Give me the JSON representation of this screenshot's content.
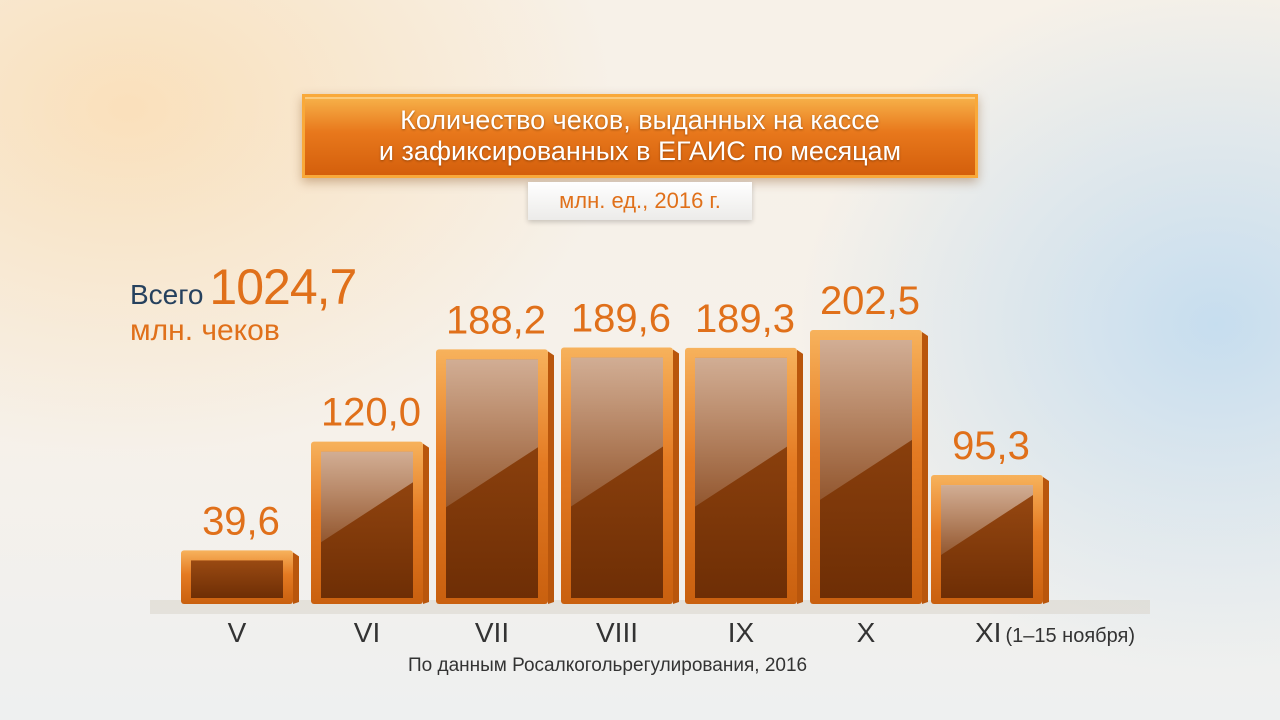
{
  "colors": {
    "accent": "#e0701a",
    "bar_dark": "#8a3d08",
    "bar_light": "#f5a040",
    "total_text": "#26415e"
  },
  "total": {
    "prefix": "Всего",
    "value": "1024,7",
    "unit": "млн. чеков"
  },
  "source": "По данным Росалкогольрегулирования, 2016",
  "chart_data": {
    "type": "bar",
    "title": "Количество чеков, выданных на кассе и зафиксированных в ЕГАИС по месяцам",
    "title_lines": [
      "Количество чеков, выданных на кассе",
      "и зафиксированных в ЕГАИС по месяцам"
    ],
    "subtitle": "млн. ед., 2016 г.",
    "categories": [
      "V",
      "VI",
      "VII",
      "VIII",
      "IX",
      "X",
      "XI"
    ],
    "category_notes": [
      "",
      "",
      "",
      "",
      "",
      "",
      "(1–15 ноября)"
    ],
    "values": [
      39.6,
      120.0,
      188.2,
      189.6,
      189.3,
      202.5,
      95.3
    ],
    "value_labels": [
      "39,6",
      "120,0",
      "188,2",
      "189,6",
      "189,3",
      "202,5",
      "95,3"
    ],
    "ylim": [
      0,
      220
    ],
    "xlabel": "",
    "ylabel": "",
    "grid": false,
    "legend": "none"
  }
}
